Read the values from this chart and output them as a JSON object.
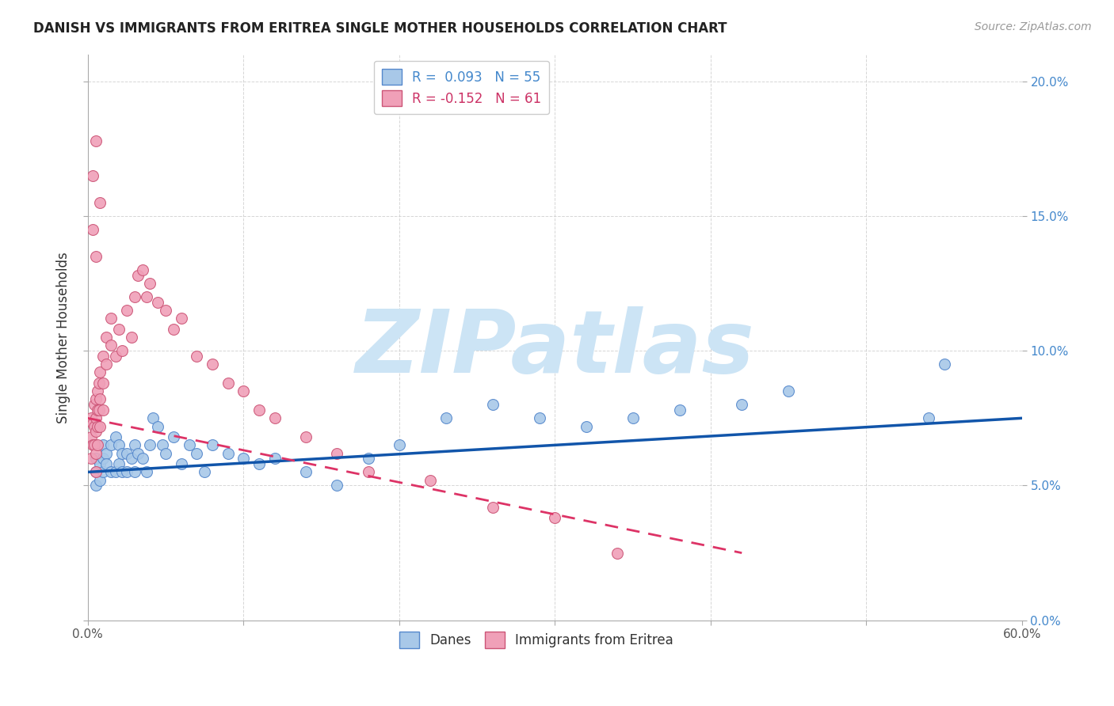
{
  "title": "DANISH VS IMMIGRANTS FROM ERITREA SINGLE MOTHER HOUSEHOLDS CORRELATION CHART",
  "source": "Source: ZipAtlas.com",
  "ylabel": "Single Mother Households",
  "xlim": [
    0.0,
    0.6
  ],
  "ylim": [
    0.0,
    0.21
  ],
  "ytick_vals": [
    0.0,
    0.05,
    0.1,
    0.15,
    0.2
  ],
  "ytick_labels_right": [
    "0.0%",
    "5.0%",
    "10.0%",
    "15.0%",
    "20.0%"
  ],
  "xtick_vals": [
    0.0,
    0.1,
    0.2,
    0.3,
    0.4,
    0.5,
    0.6
  ],
  "xtick_labels_show": [
    "0.0%",
    "",
    "",
    "",
    "",
    "",
    "60.0%"
  ],
  "danes_color": "#a8c8e8",
  "danes_edge_color": "#5588cc",
  "eritrea_color": "#f0a0b8",
  "eritrea_edge_color": "#cc5577",
  "danes_R": 0.093,
  "danes_N": 55,
  "eritrea_R": -0.152,
  "eritrea_N": 61,
  "danes_line_color": "#1155aa",
  "eritrea_line_color": "#dd3366",
  "danes_line_x": [
    0.0,
    0.6
  ],
  "danes_line_y": [
    0.055,
    0.075
  ],
  "eritrea_line_x": [
    0.0,
    0.42
  ],
  "eritrea_line_y": [
    0.075,
    0.025
  ],
  "danes_scatter_x": [
    0.005,
    0.005,
    0.005,
    0.008,
    0.008,
    0.01,
    0.01,
    0.01,
    0.012,
    0.012,
    0.015,
    0.015,
    0.018,
    0.018,
    0.02,
    0.02,
    0.022,
    0.022,
    0.025,
    0.025,
    0.028,
    0.03,
    0.03,
    0.032,
    0.035,
    0.038,
    0.04,
    0.042,
    0.045,
    0.048,
    0.05,
    0.055,
    0.06,
    0.065,
    0.07,
    0.075,
    0.08,
    0.09,
    0.1,
    0.11,
    0.12,
    0.14,
    0.16,
    0.18,
    0.2,
    0.23,
    0.26,
    0.29,
    0.32,
    0.35,
    0.38,
    0.42,
    0.45,
    0.54,
    0.55
  ],
  "danes_scatter_y": [
    0.06,
    0.055,
    0.05,
    0.058,
    0.052,
    0.065,
    0.06,
    0.055,
    0.062,
    0.058,
    0.065,
    0.055,
    0.068,
    0.055,
    0.065,
    0.058,
    0.062,
    0.055,
    0.062,
    0.055,
    0.06,
    0.065,
    0.055,
    0.062,
    0.06,
    0.055,
    0.065,
    0.075,
    0.072,
    0.065,
    0.062,
    0.068,
    0.058,
    0.065,
    0.062,
    0.055,
    0.065,
    0.062,
    0.06,
    0.058,
    0.06,
    0.055,
    0.05,
    0.06,
    0.065,
    0.075,
    0.08,
    0.075,
    0.072,
    0.075,
    0.078,
    0.08,
    0.085,
    0.075,
    0.095
  ],
  "eritrea_scatter_x": [
    0.002,
    0.002,
    0.002,
    0.003,
    0.003,
    0.004,
    0.004,
    0.004,
    0.005,
    0.005,
    0.005,
    0.005,
    0.005,
    0.006,
    0.006,
    0.006,
    0.006,
    0.007,
    0.007,
    0.008,
    0.008,
    0.008,
    0.01,
    0.01,
    0.01,
    0.012,
    0.012,
    0.015,
    0.015,
    0.018,
    0.02,
    0.022,
    0.025,
    0.028,
    0.03,
    0.032,
    0.035,
    0.038,
    0.04,
    0.045,
    0.05,
    0.055,
    0.06,
    0.07,
    0.08,
    0.09,
    0.1,
    0.11,
    0.12,
    0.14,
    0.16,
    0.18,
    0.22,
    0.26,
    0.3,
    0.34,
    0.003,
    0.003,
    0.005,
    0.005,
    0.008
  ],
  "eritrea_scatter_y": [
    0.075,
    0.068,
    0.06,
    0.073,
    0.065,
    0.08,
    0.072,
    0.065,
    0.082,
    0.075,
    0.07,
    0.062,
    0.055,
    0.085,
    0.078,
    0.072,
    0.065,
    0.088,
    0.078,
    0.092,
    0.082,
    0.072,
    0.098,
    0.088,
    0.078,
    0.105,
    0.095,
    0.112,
    0.102,
    0.098,
    0.108,
    0.1,
    0.115,
    0.105,
    0.12,
    0.128,
    0.13,
    0.12,
    0.125,
    0.118,
    0.115,
    0.108,
    0.112,
    0.098,
    0.095,
    0.088,
    0.085,
    0.078,
    0.075,
    0.068,
    0.062,
    0.055,
    0.052,
    0.042,
    0.038,
    0.025,
    0.145,
    0.165,
    0.135,
    0.178,
    0.155
  ],
  "watermark_text": "ZIPatlas",
  "watermark_color": "#cce4f5",
  "legend_danes_label": "Danes",
  "legend_eritrea_label": "Immigrants from Eritrea",
  "background_color": "#ffffff",
  "grid_color": "#cccccc"
}
